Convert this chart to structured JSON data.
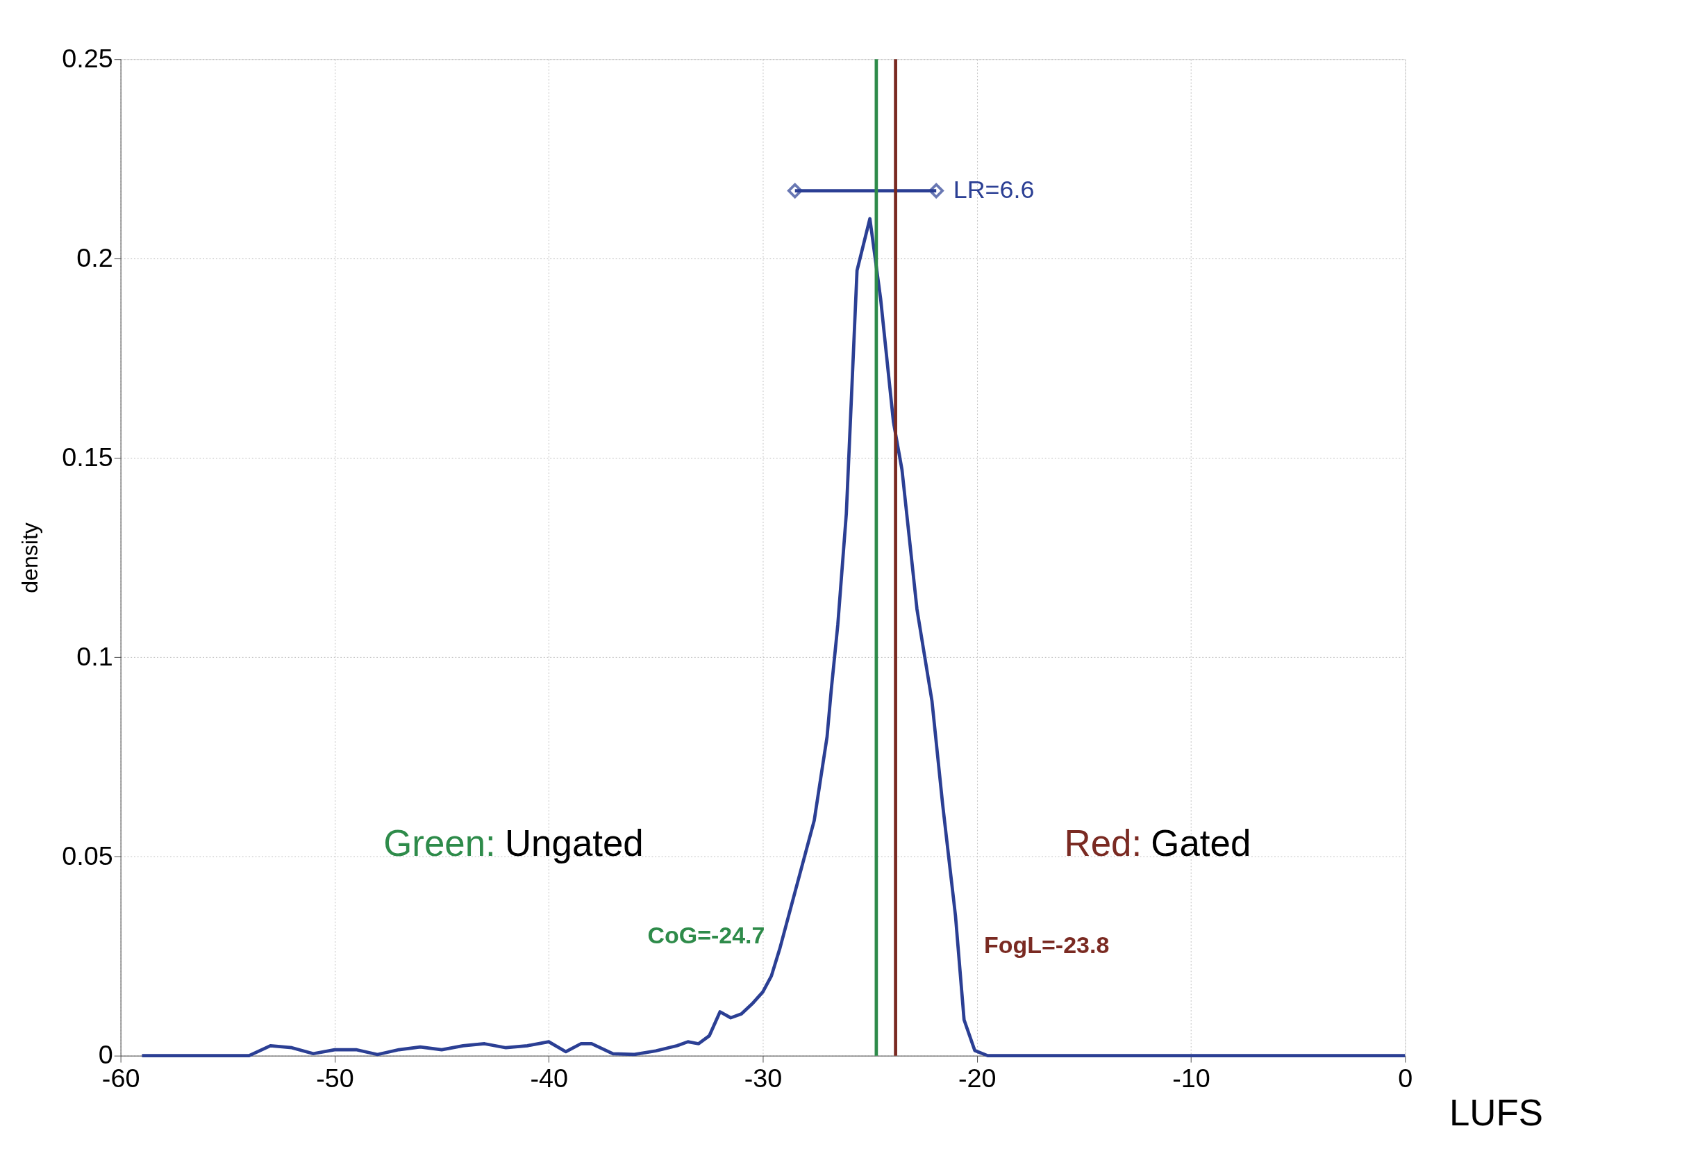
{
  "chart_data": {
    "type": "line",
    "xlabel": "LUFS",
    "ylabel": "density",
    "xlim": [
      -60,
      0
    ],
    "xticks": [
      -60,
      -50,
      -40,
      -30,
      -20,
      -10,
      0
    ],
    "ylim": [
      0,
      0.25
    ],
    "yticks": [
      0,
      0.05,
      0.1,
      0.15,
      0.2,
      0.25
    ],
    "grid": true,
    "line_style": "solid",
    "series": [
      {
        "color": "#2b3f94",
        "marker": "none",
        "x": [
          -59,
          -54,
          -53,
          -52,
          -51,
          -50,
          -49,
          -48,
          -47,
          -46,
          -45,
          -44,
          -43,
          -42,
          -41,
          -40,
          -39.2,
          -38.5,
          -38,
          -37,
          -36,
          -35,
          -34,
          -33.5,
          -33,
          -32.5,
          -32,
          -31.5,
          -31,
          -30.5,
          -30,
          -29.6,
          -29.2,
          -28.5,
          -27.6,
          -27,
          -26.8,
          -26.5,
          -26.1,
          -25.6,
          -25,
          -24.5,
          -23.9,
          -23.5,
          -22.8,
          -22.1,
          -21.6,
          -21,
          -20.6,
          -20.1,
          -19.5,
          -10,
          0
        ],
        "values": [
          0,
          0,
          0.0025,
          0.002,
          0.0005,
          0.0015,
          0.0015,
          0.0003,
          0.0015,
          0.0022,
          0.0015,
          0.0025,
          0.003,
          0.002,
          0.0025,
          0.0035,
          0.001,
          0.003,
          0.003,
          0.0005,
          0.0003,
          0.0012,
          0.0025,
          0.0035,
          0.003,
          0.005,
          0.011,
          0.0095,
          0.0105,
          0.013,
          0.016,
          0.02,
          0.027,
          0.041,
          0.059,
          0.08,
          0.092,
          0.108,
          0.136,
          0.197,
          0.21,
          0.19,
          0.159,
          0.147,
          0.112,
          0.089,
          0.063,
          0.035,
          0.009,
          0.0013,
          0,
          0,
          0
        ]
      },
      {
        "name": "LR=6.6",
        "color": "#2b3f94",
        "marker": "diamond",
        "x": [
          -28.5,
          -21.9
        ],
        "values": [
          0.217,
          0.217
        ]
      }
    ],
    "ref_lines": [
      {
        "axis": "x",
        "value": -24.7,
        "label": "CoG=-24.7",
        "color": "#2e8b4a"
      },
      {
        "axis": "x",
        "value": -23.8,
        "label": "FogL=-23.8",
        "color": "#7a2a22"
      }
    ],
    "annotations": [
      "Green: Ungated",
      "Red: Gated"
    ]
  }
}
